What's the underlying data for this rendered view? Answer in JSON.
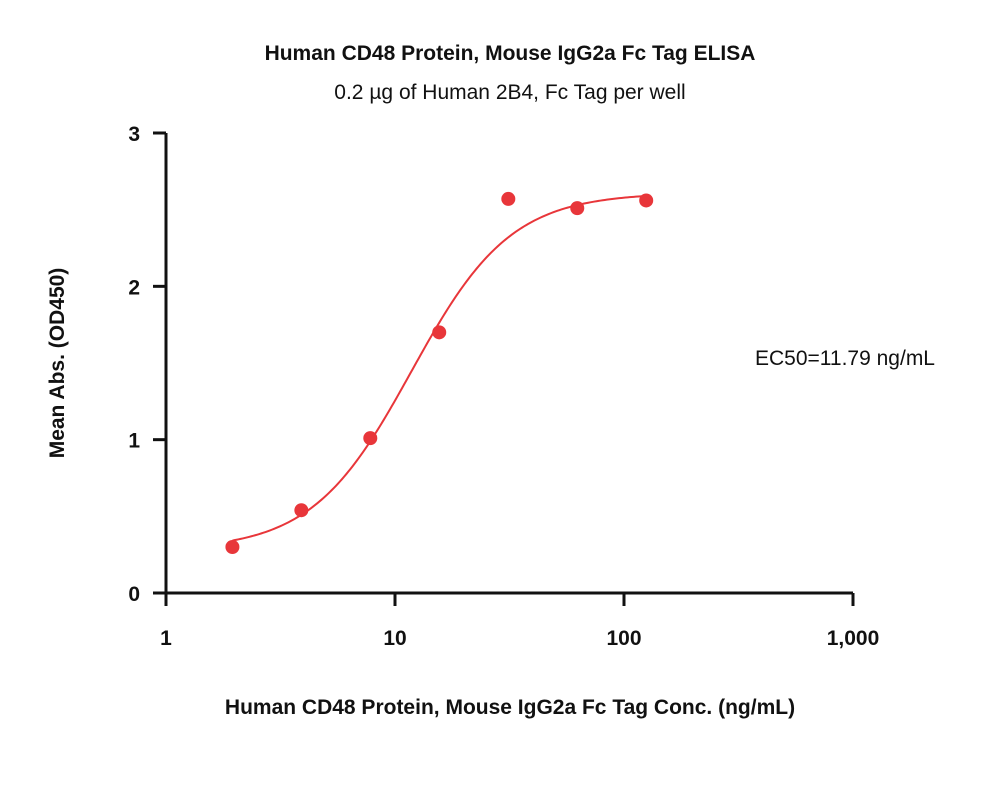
{
  "chart_data": {
    "type": "scatter",
    "title": "Human CD48 Protein, Mouse IgG2a Fc Tag ELISA",
    "subtitle": "0.2 µg of Human 2B4, Fc Tag per well",
    "xlabel": "Human CD48 Protein, Mouse IgG2a Fc Tag Conc. (ng/mL)",
    "ylabel": "Mean Abs. (OD450)",
    "xscale": "log",
    "xlim": [
      1,
      1000
    ],
    "ylim": [
      0,
      3
    ],
    "xticks": [
      "1",
      "10",
      "100",
      "1,000"
    ],
    "xtick_values": [
      1,
      10,
      100,
      1000
    ],
    "yticks": [
      "0",
      "1",
      "2",
      "3"
    ],
    "ytick_values": [
      0,
      1,
      2,
      3
    ],
    "annotation": "EC50=11.79 ng/mL",
    "series": [
      {
        "color": "#e8363a",
        "x": [
          1.95,
          3.9,
          7.8,
          15.6,
          31.25,
          62.5,
          125
        ],
        "y": [
          0.3,
          0.54,
          1.01,
          1.7,
          2.57,
          2.51,
          2.56
        ]
      }
    ],
    "fit": {
      "model": "4PL",
      "bottom": 0.28,
      "top": 2.61,
      "ec50": 11.79,
      "hill": 2.0,
      "x_range": [
        1.95,
        125
      ],
      "color": "#e8363a"
    },
    "grid": false,
    "legend": "none"
  }
}
